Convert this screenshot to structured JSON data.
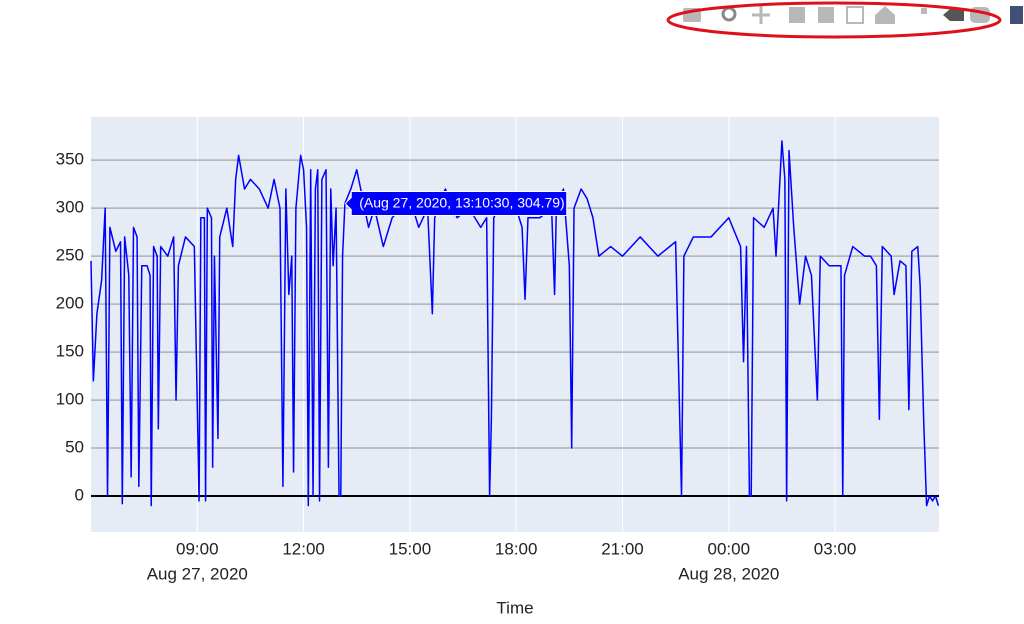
{
  "chart_data": {
    "type": "line",
    "x_label": "Time",
    "series": [
      {
        "color": "#0000ff",
        "x": [
          "2020-08-27T06:00",
          "2020-08-27T06:04",
          "2020-08-27T06:10",
          "2020-08-27T06:18",
          "2020-08-27T06:24",
          "2020-08-27T06:28",
          "2020-08-27T06:32",
          "2020-08-27T06:42",
          "2020-08-27T06:50",
          "2020-08-27T06:53",
          "2020-08-27T06:57",
          "2020-08-27T07:04",
          "2020-08-27T07:08",
          "2020-08-27T07:12",
          "2020-08-27T07:18",
          "2020-08-27T07:21",
          "2020-08-27T07:26",
          "2020-08-27T07:35",
          "2020-08-27T07:40",
          "2020-08-27T07:42",
          "2020-08-27T07:46",
          "2020-08-27T07:52",
          "2020-08-27T07:54",
          "2020-08-27T07:58",
          "2020-08-27T08:10",
          "2020-08-27T08:20",
          "2020-08-27T08:24",
          "2020-08-27T08:28",
          "2020-08-27T08:40",
          "2020-08-27T08:55",
          "2020-08-27T09:03",
          "2020-08-27T09:06",
          "2020-08-27T09:12",
          "2020-08-27T09:14",
          "2020-08-27T09:17",
          "2020-08-27T09:24",
          "2020-08-27T09:26",
          "2020-08-27T09:29",
          "2020-08-27T09:35",
          "2020-08-27T09:38",
          "2020-08-27T09:50",
          "2020-08-27T10:00",
          "2020-08-27T10:05",
          "2020-08-27T10:10",
          "2020-08-27T10:20",
          "2020-08-27T10:30",
          "2020-08-27T10:45",
          "2020-08-27T11:00",
          "2020-08-27T11:10",
          "2020-08-27T11:20",
          "2020-08-27T11:25",
          "2020-08-27T11:30",
          "2020-08-27T11:35",
          "2020-08-27T11:40",
          "2020-08-27T11:43",
          "2020-08-27T11:47",
          "2020-08-27T11:55",
          "2020-08-27T12:00",
          "2020-08-27T12:05",
          "2020-08-27T12:08",
          "2020-08-27T12:12",
          "2020-08-27T12:16",
          "2020-08-27T12:20",
          "2020-08-27T12:24",
          "2020-08-27T12:27",
          "2020-08-27T12:31",
          "2020-08-27T12:38",
          "2020-08-27T12:42",
          "2020-08-27T12:46",
          "2020-08-27T12:50",
          "2020-08-27T12:55",
          "2020-08-27T13:00",
          "2020-08-27T13:03",
          "2020-08-27T13:06",
          "2020-08-27T13:10",
          "2020-08-27T13:20",
          "2020-08-27T13:30",
          "2020-08-27T13:40",
          "2020-08-27T13:50",
          "2020-08-27T14:00",
          "2020-08-27T14:15",
          "2020-08-27T14:30",
          "2020-08-27T14:45",
          "2020-08-27T15:00",
          "2020-08-27T15:15",
          "2020-08-27T15:30",
          "2020-08-27T15:38",
          "2020-08-27T15:42",
          "2020-08-27T16:00",
          "2020-08-27T16:20",
          "2020-08-27T16:40",
          "2020-08-27T17:00",
          "2020-08-27T17:10",
          "2020-08-27T17:15",
          "2020-08-27T17:18",
          "2020-08-27T17:22",
          "2020-08-27T17:40",
          "2020-08-27T18:00",
          "2020-08-27T18:10",
          "2020-08-27T18:15",
          "2020-08-27T18:20",
          "2020-08-27T18:40",
          "2020-08-27T19:00",
          "2020-08-27T19:05",
          "2020-08-27T19:08",
          "2020-08-27T19:20",
          "2020-08-27T19:30",
          "2020-08-27T19:34",
          "2020-08-27T19:38",
          "2020-08-27T19:50",
          "2020-08-27T20:00",
          "2020-08-27T20:10",
          "2020-08-27T20:20",
          "2020-08-27T20:40",
          "2020-08-27T21:00",
          "2020-08-27T21:30",
          "2020-08-27T22:00",
          "2020-08-27T22:30",
          "2020-08-27T22:40",
          "2020-08-27T22:44",
          "2020-08-27T23:00",
          "2020-08-27T23:30",
          "2020-08-28T00:00",
          "2020-08-28T00:20",
          "2020-08-28T00:25",
          "2020-08-28T00:30",
          "2020-08-28T00:35",
          "2020-08-28T00:38",
          "2020-08-28T00:42",
          "2020-08-28T01:00",
          "2020-08-28T01:15",
          "2020-08-28T01:20",
          "2020-08-28T01:30",
          "2020-08-28T01:35",
          "2020-08-28T01:38",
          "2020-08-28T01:42",
          "2020-08-28T01:50",
          "2020-08-28T02:00",
          "2020-08-28T02:10",
          "2020-08-28T02:20",
          "2020-08-28T02:30",
          "2020-08-28T02:35",
          "2020-08-28T02:50",
          "2020-08-28T03:10",
          "2020-08-28T03:13",
          "2020-08-28T03:16",
          "2020-08-28T03:30",
          "2020-08-28T03:50",
          "2020-08-28T04:00",
          "2020-08-28T04:10",
          "2020-08-28T04:15",
          "2020-08-28T04:20",
          "2020-08-28T04:35",
          "2020-08-28T04:40",
          "2020-08-28T04:50",
          "2020-08-28T05:00",
          "2020-08-28T05:05",
          "2020-08-28T05:10",
          "2020-08-28T05:20",
          "2020-08-28T05:24",
          "2020-08-28T05:30",
          "2020-08-28T05:35",
          "2020-08-28T05:40",
          "2020-08-28T05:45",
          "2020-08-28T05:50",
          "2020-08-28T05:55"
        ],
        "values": [
          245,
          120,
          190,
          225,
          300,
          0,
          280,
          255,
          265,
          -8,
          270,
          230,
          20,
          280,
          270,
          10,
          240,
          240,
          230,
          -10,
          260,
          250,
          70,
          260,
          250,
          270,
          100,
          240,
          270,
          260,
          -5,
          290,
          290,
          -5,
          300,
          290,
          30,
          250,
          60,
          270,
          300,
          260,
          330,
          355,
          320,
          330,
          320,
          300,
          330,
          300,
          10,
          320,
          210,
          250,
          25,
          300,
          355,
          340,
          280,
          -10,
          340,
          0,
          320,
          340,
          -5,
          330,
          340,
          30,
          320,
          240,
          300,
          0,
          0,
          250,
          305,
          320,
          340,
          310,
          280,
          300,
          260,
          290,
          300,
          310,
          280,
          300,
          190,
          290,
          320,
          290,
          300,
          280,
          290,
          0,
          80,
          290,
          310,
          300,
          280,
          205,
          290,
          290,
          300,
          210,
          300,
          320,
          240,
          50,
          300,
          320,
          310,
          290,
          250,
          260,
          250,
          270,
          250,
          265,
          0,
          250,
          270,
          270,
          290,
          260,
          140,
          260,
          0,
          0,
          290,
          280,
          300,
          250,
          370,
          330,
          -5,
          360,
          280,
          200,
          250,
          230,
          100,
          250,
          240,
          240,
          0,
          230,
          260,
          250,
          250,
          240,
          80,
          260,
          250,
          210,
          245,
          240,
          90,
          255,
          260,
          220,
          80,
          -10,
          0,
          -5,
          0,
          -10
        ]
      }
    ],
    "xlim": [
      "2020-08-27T06:00",
      "2020-08-28T05:56"
    ],
    "xticks": [
      {
        "value": "2020-08-27T09:00",
        "label": "09:00"
      },
      {
        "value": "2020-08-27T12:00",
        "label": "12:00"
      },
      {
        "value": "2020-08-27T15:00",
        "label": "15:00"
      },
      {
        "value": "2020-08-27T18:00",
        "label": "18:00"
      },
      {
        "value": "2020-08-27T21:00",
        "label": "21:00"
      },
      {
        "value": "2020-08-28T00:00",
        "label": "00:00"
      },
      {
        "value": "2020-08-28T03:00",
        "label": "03:00"
      }
    ],
    "xtick_dates": [
      {
        "value": "2020-08-27T09:00",
        "label": "Aug 27, 2020"
      },
      {
        "value": "2020-08-28T00:00",
        "label": "Aug 28, 2020"
      }
    ],
    "ylim": [
      -37.5,
      395
    ],
    "yticks": [
      0,
      50,
      100,
      150,
      200,
      250,
      300,
      350
    ],
    "grid": true,
    "hover_label": {
      "text": "(Aug 27, 2020, 13:10:30, 304.79)",
      "x": "2020-08-27T13:10:30",
      "y": 304.79
    }
  }
}
